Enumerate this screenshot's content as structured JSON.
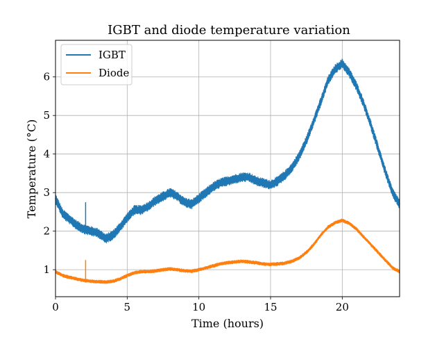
{
  "chart_data": {
    "type": "line",
    "title": "IGBT and diode temperature variation",
    "xlabel": "Time (hours)",
    "ylabel": "Temperature (°C)",
    "xlim": [
      0,
      24
    ],
    "ylim": [
      0.3,
      6.95
    ],
    "xticks": [
      0,
      5,
      10,
      15,
      20
    ],
    "yticks": [
      1,
      2,
      3,
      4,
      5,
      6
    ],
    "grid": true,
    "legend_position": "top-left",
    "series": [
      {
        "name": "IGBT",
        "color": "#1f77b4",
        "band_width": 0.26,
        "x": [
          0,
          0.5,
          1,
          1.5,
          2,
          2.5,
          3,
          3.5,
          4,
          4.5,
          5,
          5.5,
          6,
          6.5,
          7,
          7.5,
          8,
          8.5,
          9,
          9.5,
          10,
          10.5,
          11,
          11.5,
          12,
          12.5,
          13,
          13.5,
          14,
          14.5,
          15,
          15.5,
          16,
          16.5,
          17,
          17.5,
          18,
          18.5,
          19,
          19.5,
          20,
          20.5,
          21,
          21.5,
          22,
          22.5,
          23,
          23.5,
          24
        ],
        "values": [
          2.85,
          2.45,
          2.3,
          2.15,
          2.05,
          2.0,
          1.95,
          1.8,
          1.9,
          2.1,
          2.35,
          2.55,
          2.55,
          2.65,
          2.8,
          2.9,
          3.0,
          2.9,
          2.75,
          2.7,
          2.85,
          3.0,
          3.15,
          3.25,
          3.3,
          3.35,
          3.4,
          3.4,
          3.3,
          3.25,
          3.2,
          3.3,
          3.45,
          3.65,
          3.95,
          4.35,
          4.85,
          5.35,
          5.9,
          6.2,
          6.35,
          6.1,
          5.75,
          5.3,
          4.75,
          4.15,
          3.55,
          3.0,
          2.7
        ],
        "spikes": [
          {
            "x": 2.1,
            "y": 2.75
          }
        ]
      },
      {
        "name": "Diode",
        "color": "#ff7f0e",
        "band_width": 0.1,
        "x": [
          0,
          0.5,
          1,
          1.5,
          2,
          2.5,
          3,
          3.5,
          4,
          4.5,
          5,
          5.5,
          6,
          6.5,
          7,
          7.5,
          8,
          8.5,
          9,
          9.5,
          10,
          10.5,
          11,
          11.5,
          12,
          12.5,
          13,
          13.5,
          14,
          14.5,
          15,
          15.5,
          16,
          16.5,
          17,
          17.5,
          18,
          18.5,
          19,
          19.5,
          20,
          20.5,
          21,
          21.5,
          22,
          22.5,
          23,
          23.5,
          24
        ],
        "values": [
          0.95,
          0.85,
          0.8,
          0.76,
          0.72,
          0.7,
          0.69,
          0.68,
          0.7,
          0.76,
          0.85,
          0.92,
          0.95,
          0.95,
          0.97,
          1.0,
          1.02,
          1.0,
          0.97,
          0.96,
          1.0,
          1.05,
          1.1,
          1.15,
          1.18,
          1.2,
          1.22,
          1.2,
          1.18,
          1.15,
          1.14,
          1.15,
          1.17,
          1.22,
          1.3,
          1.45,
          1.65,
          1.9,
          2.1,
          2.22,
          2.28,
          2.2,
          2.05,
          1.85,
          1.65,
          1.45,
          1.25,
          1.05,
          0.95
        ],
        "spikes": [
          {
            "x": 2.1,
            "y": 1.25
          }
        ]
      }
    ]
  }
}
